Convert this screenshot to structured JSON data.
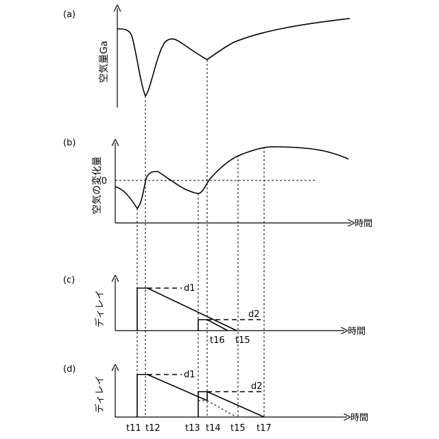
{
  "panels": {
    "a": {
      "label": "(a)",
      "ylabel": "空気量Ga"
    },
    "b": {
      "label": "(b)",
      "ylabel": "空気の変化量",
      "zero_label": "0",
      "xlabel": "時間"
    },
    "c": {
      "label": "(c)",
      "ylabel": "ディレイ",
      "xlabel": "時間",
      "d1": "d1",
      "d2": "d2",
      "t16": "t16",
      "t15": "t15"
    },
    "d": {
      "label": "(d)",
      "ylabel": "ディレイ",
      "xlabel": "時間",
      "d1": "d1",
      "d2": "d2",
      "ticks": [
        "t11",
        "t12",
        "t13",
        "t14",
        "t15",
        "t17"
      ]
    }
  }
}
